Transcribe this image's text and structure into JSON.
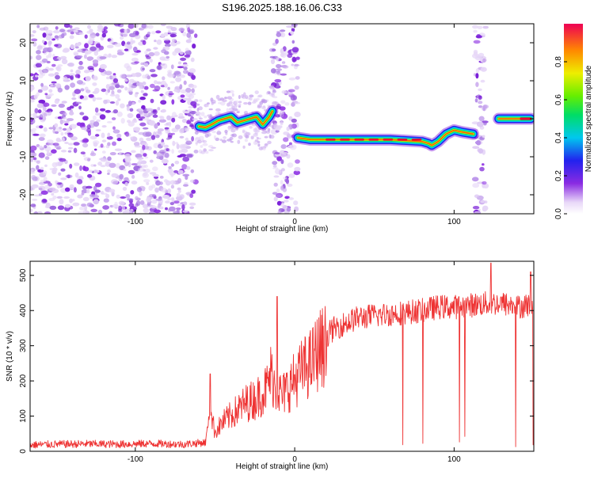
{
  "chart_data": [
    {
      "type": "heatmap",
      "title": "S196.2025.188.16.06.C33",
      "xlabel": "Height of straight line (km)",
      "ylabel": "Frequency (Hz)",
      "xlim": [
        -166,
        150
      ],
      "ylim": [
        -25,
        25
      ],
      "xticks": [
        -100,
        0,
        100
      ],
      "yticks": [
        -20,
        -10,
        0,
        10,
        20
      ],
      "colorbar": {
        "label": "Normalized spectral amplitude",
        "range": [
          0.0,
          1.0
        ],
        "ticks": [
          0.0,
          0.2,
          0.4,
          0.6,
          0.8
        ],
        "colormap": "rainbow"
      },
      "noise_bands_km": [
        [
          -166,
          -62
        ],
        [
          -14,
          2
        ],
        [
          113,
          120
        ]
      ],
      "ridge": {
        "x": [
          -60,
          -56,
          -52,
          -48,
          -44,
          -40,
          -36,
          -32,
          -28,
          -24,
          -20,
          -16,
          -14,
          2,
          10,
          20,
          40,
          60,
          80,
          84,
          86,
          90,
          95,
          100,
          105,
          112,
          128,
          135,
          142,
          148
        ],
        "y": [
          -2,
          -2.3,
          -1.5,
          -0.5,
          0,
          0.5,
          -1,
          -0.5,
          0,
          0.5,
          -1.5,
          0.5,
          2,
          -5,
          -5.5,
          -5.5,
          -5.5,
          -5.5,
          -6,
          -6.5,
          -7,
          -6,
          -4,
          -3,
          -3.5,
          -4,
          0,
          0,
          0,
          0
        ]
      }
    },
    {
      "type": "line",
      "xlabel": "Height of straight line (km)",
      "ylabel": "SNR (10 * v/v)",
      "xlim": [
        -166,
        150
      ],
      "ylim": [
        0,
        540
      ],
      "xticks": [
        -100,
        0,
        100
      ],
      "yticks": [
        0,
        100,
        200,
        300,
        400,
        500
      ],
      "color": "#ee3333",
      "series": [
        {
          "x": [
            -166,
            -150,
            -130,
            -110,
            -90,
            -70,
            -56,
            -53,
            -50,
            -45,
            -40,
            -35,
            -30,
            -25,
            -20,
            -17,
            -15,
            -12,
            -8,
            -5,
            0,
            5,
            10,
            15,
            20,
            25,
            30,
            35,
            40,
            50,
            60,
            70,
            80,
            90,
            100,
            110,
            120,
            130,
            140,
            150
          ],
          "values": [
            18,
            20,
            21,
            20,
            22,
            20,
            25,
            120,
            60,
            90,
            110,
            130,
            150,
            160,
            180,
            200,
            240,
            200,
            170,
            190,
            220,
            250,
            270,
            310,
            330,
            350,
            360,
            370,
            380,
            385,
            390,
            395,
            400,
            410,
            410,
            415,
            420,
            420,
            410,
            420
          ]
        }
      ]
    }
  ]
}
